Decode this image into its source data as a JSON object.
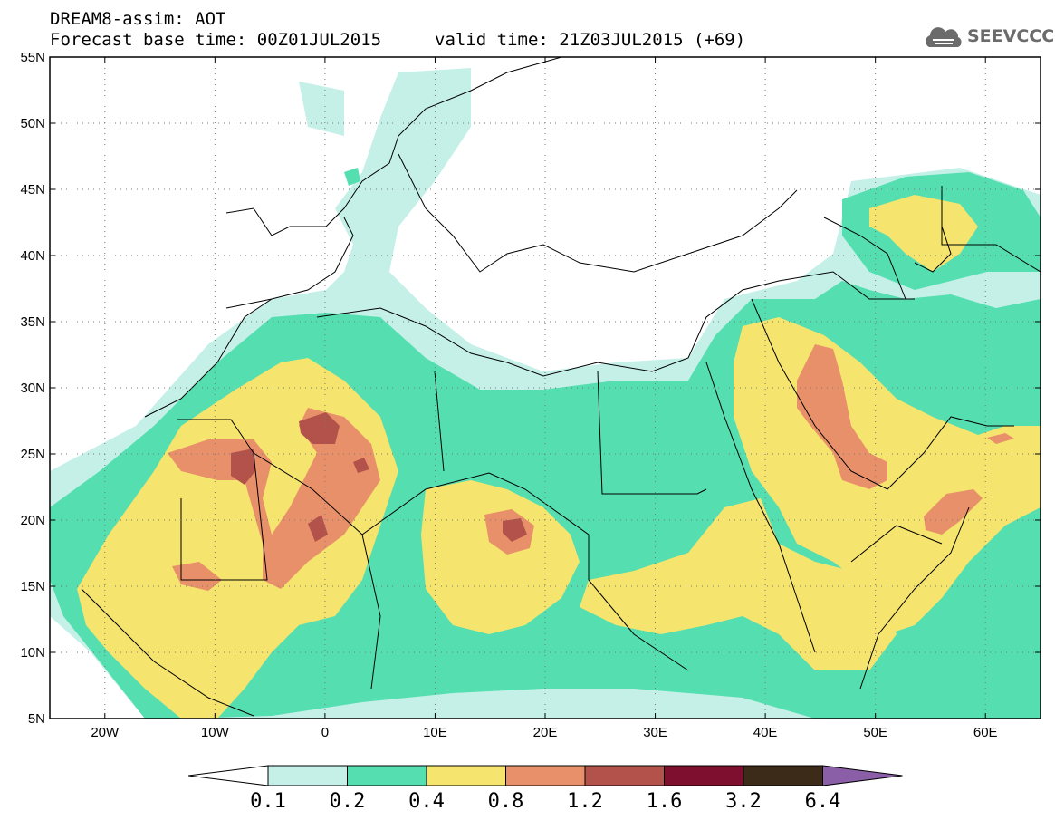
{
  "title": {
    "line1": "DREAM8-assim: AOT",
    "base_time": "Forecast base time: 00Z01JUL2015",
    "valid_time": "valid time: 21Z03JUL2015 (+69)"
  },
  "logo": {
    "text": "SEEVCCC",
    "icon": "cloud-logo-icon",
    "color": "#6b6b6b"
  },
  "map": {
    "lon_range": [
      -25,
      65
    ],
    "lat_range": [
      5,
      55
    ],
    "lat_ticks": [
      {
        "value": 55,
        "label": "55N"
      },
      {
        "value": 50,
        "label": "50N"
      },
      {
        "value": 45,
        "label": "45N"
      },
      {
        "value": 40,
        "label": "40N"
      },
      {
        "value": 35,
        "label": "35N"
      },
      {
        "value": 30,
        "label": "30N"
      },
      {
        "value": 25,
        "label": "25N"
      },
      {
        "value": 20,
        "label": "20N"
      },
      {
        "value": 15,
        "label": "15N"
      },
      {
        "value": 10,
        "label": "10N"
      },
      {
        "value": 5,
        "label": "5N"
      }
    ],
    "lon_ticks": [
      {
        "value": -20,
        "label": "20W"
      },
      {
        "value": -10,
        "label": "10W"
      },
      {
        "value": 0,
        "label": "0"
      },
      {
        "value": 10,
        "label": "10E"
      },
      {
        "value": 20,
        "label": "20E"
      },
      {
        "value": 30,
        "label": "30E"
      },
      {
        "value": 40,
        "label": "40E"
      },
      {
        "value": 50,
        "label": "50E"
      },
      {
        "value": 60,
        "label": "60E"
      }
    ],
    "grid": true
  },
  "colorbar": {
    "labels": [
      "0.1",
      "0.2",
      "0.4",
      "0.8",
      "1.2",
      "1.6",
      "3.2",
      "6.4"
    ],
    "colors": [
      "#ffffff",
      "#c4f0e8",
      "#55deb0",
      "#f5e46e",
      "#e8906a",
      "#b3524a",
      "#7f0f2e",
      "#3d2b1a",
      "#8a5fa8"
    ]
  }
}
